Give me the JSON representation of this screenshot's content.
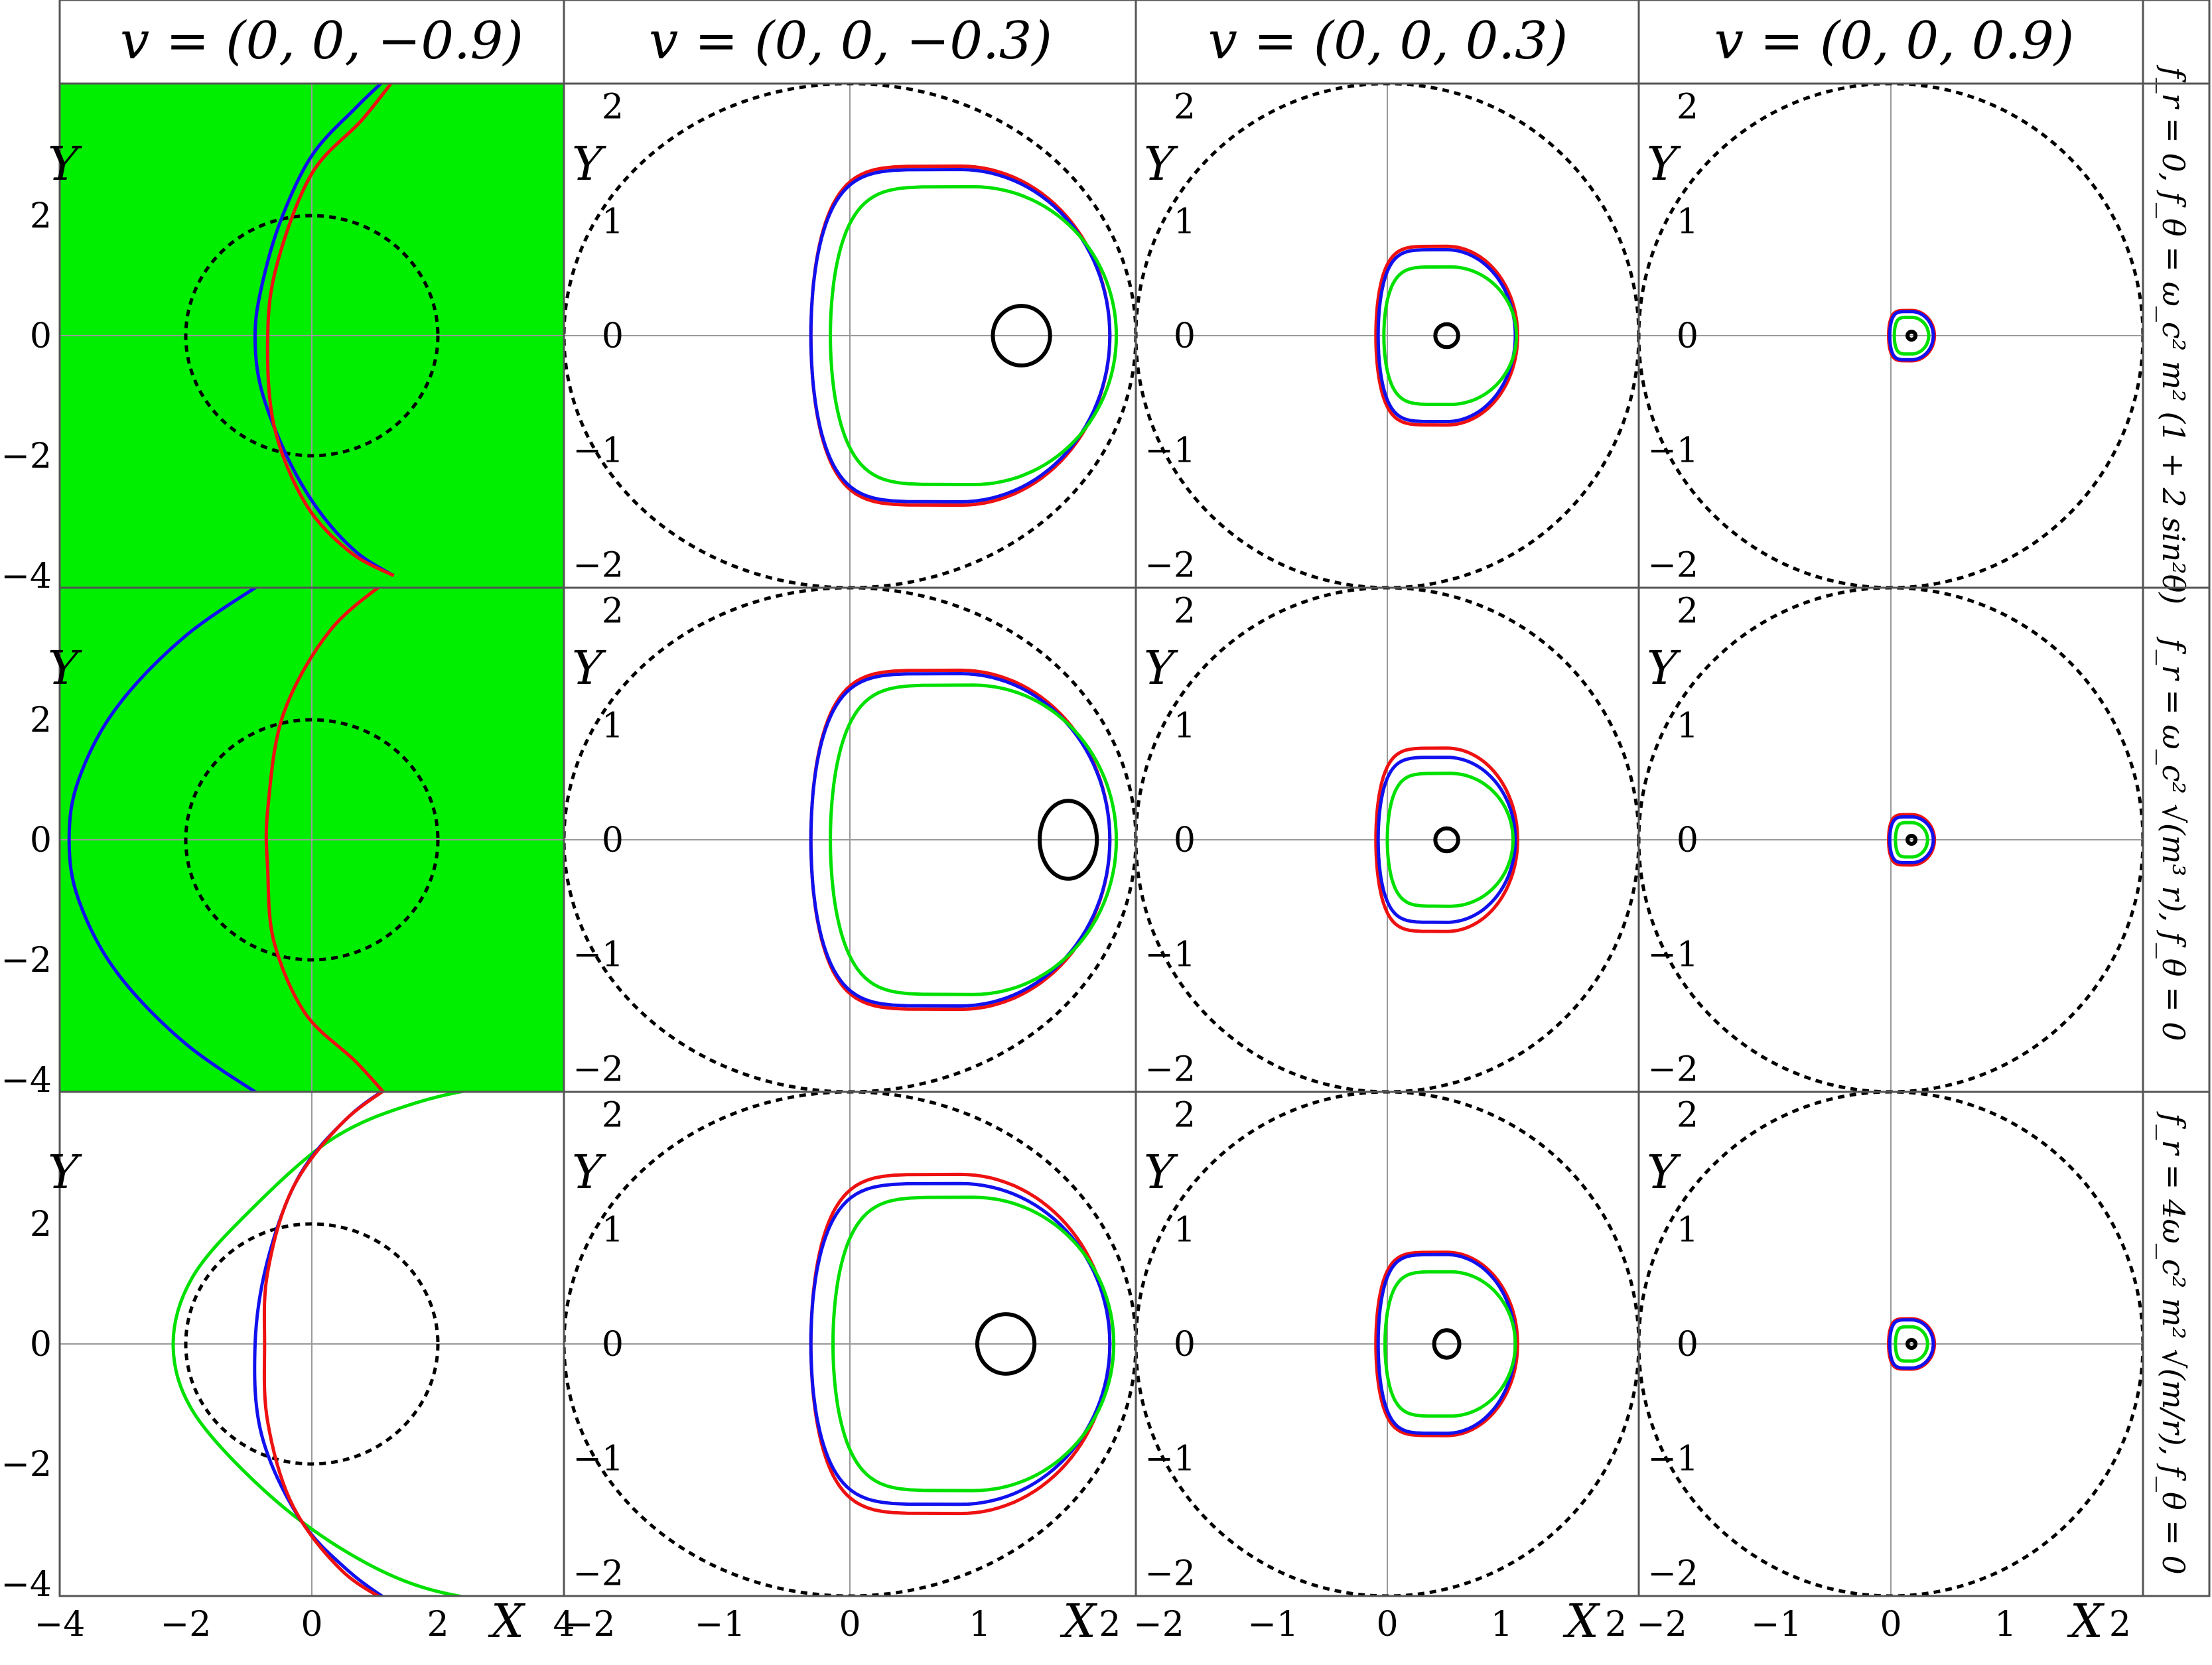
{
  "figure": {
    "columns": [
      {
        "label": "v = (0, 0, −0.9)"
      },
      {
        "label": "v = (0, 0, −0.3)"
      },
      {
        "label": "v = (0, 0, 0.3)"
      },
      {
        "label": "v = (0, 0, 0.9)"
      }
    ],
    "rows": [
      {
        "label": "f_r = 0,  f_θ = ω_c² m² (1 + 2 sin²θ)"
      },
      {
        "label": "f_r = ω_c² √(m³ r),  f_θ = 0"
      },
      {
        "label": "f_r = 4ω_c² m² √(m/r),  f_θ = 0"
      }
    ],
    "axis_labels": {
      "x": "X",
      "y": "Y"
    },
    "colors": {
      "red": "#ee1111",
      "blue": "#1111ee",
      "green": "#00e000",
      "black": "#000000",
      "fill_green": "#00ee00",
      "frame": "#555555",
      "axis": "#999999"
    }
  },
  "chart_data": [
    {
      "type": "line",
      "row": 0,
      "col": 0,
      "xlim": [
        -4,
        4
      ],
      "ylim": [
        -4.2,
        4.2
      ],
      "xticks": [
        -4,
        -2,
        0,
        2,
        4
      ],
      "yticks": [
        -4,
        -2,
        0,
        2,
        4
      ],
      "background_fill": "green",
      "dashed_circle": {
        "center": [
          0,
          0
        ],
        "radius": 2
      },
      "series": [
        {
          "color": "blue",
          "points": [
            [
              1.3,
              4.4
            ],
            [
              0.7,
              3.8
            ],
            [
              0.0,
              3.0
            ],
            [
              -0.5,
              1.9
            ],
            [
              -0.8,
              0.8
            ],
            [
              -0.9,
              0.0
            ],
            [
              -0.8,
              -0.9
            ],
            [
              -0.4,
              -2.0
            ],
            [
              0.1,
              -2.9
            ],
            [
              0.7,
              -3.6
            ],
            [
              1.3,
              -4.0
            ]
          ]
        },
        {
          "color": "red",
          "points": [
            [
              1.4,
              4.4
            ],
            [
              0.8,
              3.6
            ],
            [
              0.0,
              2.7
            ],
            [
              -0.55,
              1.2
            ],
            [
              -0.7,
              0.0
            ],
            [
              -0.6,
              -1.5
            ],
            [
              -0.1,
              -2.8
            ],
            [
              0.6,
              -3.6
            ],
            [
              1.3,
              -4.0
            ]
          ]
        }
      ]
    },
    {
      "type": "line",
      "row": 0,
      "col": 1,
      "xlim": [
        -2.2,
        2.2
      ],
      "ylim": [
        -2.2,
        2.2
      ],
      "xticks": [
        -2,
        -1,
        0,
        1,
        2
      ],
      "yticks": [
        -2,
        -1,
        0,
        1,
        2
      ],
      "dashed_circle": {
        "center": [
          0,
          0
        ],
        "radius": 2.2
      },
      "series": [
        {
          "color": "red",
          "cx": 0.85,
          "rx": 1.15,
          "ry": 1.48,
          "ymax": 1.48
        },
        {
          "color": "blue",
          "cx": 0.85,
          "rx": 1.15,
          "ry": 1.45,
          "ymax": 1.45
        },
        {
          "color": "green",
          "cx": 0.95,
          "rx": 1.1,
          "ry": 1.3,
          "ymax": 1.3
        },
        {
          "color": "black",
          "type": "ellipse",
          "cx": 1.32,
          "cy": 0,
          "rx": 0.22,
          "ry": 0.26
        }
      ]
    },
    {
      "type": "line",
      "row": 0,
      "col": 2,
      "xlim": [
        -2.2,
        2.2
      ],
      "ylim": [
        -2.2,
        2.2
      ],
      "xticks": [
        -2,
        -1,
        0,
        1,
        2
      ],
      "yticks": [
        -2,
        -1,
        0,
        1,
        2
      ],
      "dashed_circle": {
        "center": [
          0,
          0
        ],
        "radius": 2.2
      },
      "series": [
        {
          "color": "red",
          "cx": 0.52,
          "rx": 0.62,
          "ry": 0.78,
          "ymax": 0.78
        },
        {
          "color": "blue",
          "cx": 0.52,
          "rx": 0.6,
          "ry": 0.75,
          "ymax": 0.75
        },
        {
          "color": "green",
          "cx": 0.55,
          "rx": 0.58,
          "ry": 0.6,
          "ymax": 0.6
        },
        {
          "color": "black",
          "type": "ellipse",
          "cx": 0.52,
          "cy": 0,
          "rx": 0.1,
          "ry": 0.1
        }
      ]
    },
    {
      "type": "line",
      "row": 0,
      "col": 3,
      "xlim": [
        -2.2,
        2.2
      ],
      "ylim": [
        -2.2,
        2.2
      ],
      "xticks": [
        -2,
        -1,
        0,
        1,
        2
      ],
      "yticks": [
        -2,
        -1,
        0,
        1,
        2
      ],
      "dashed_circle": {
        "center": [
          0,
          0
        ],
        "radius": 2.2
      },
      "series": [
        {
          "color": "red",
          "cx": 0.18,
          "rx": 0.2,
          "ry": 0.22,
          "ymax": 0.22
        },
        {
          "color": "blue",
          "cx": 0.18,
          "rx": 0.19,
          "ry": 0.21,
          "ymax": 0.21
        },
        {
          "color": "green",
          "cx": 0.18,
          "rx": 0.15,
          "ry": 0.16,
          "ymax": 0.16
        },
        {
          "color": "black",
          "type": "ellipse",
          "cx": 0.18,
          "cy": 0,
          "rx": 0.035,
          "ry": 0.035
        }
      ]
    },
    {
      "type": "line",
      "row": 1,
      "col": 0,
      "xlim": [
        -4,
        4
      ],
      "ylim": [
        -4.2,
        4.2
      ],
      "xticks": [
        -4,
        -2,
        0,
        2,
        4
      ],
      "yticks": [
        -4,
        -2,
        0,
        2,
        4
      ],
      "background_fill": "green",
      "dashed_circle": {
        "center": [
          0,
          0
        ],
        "radius": 2
      },
      "series": [
        {
          "color": "blue",
          "points": [
            [
              -0.6,
              4.4
            ],
            [
              -2.0,
              3.4
            ],
            [
              -3.1,
              2.2
            ],
            [
              -3.7,
              1.0
            ],
            [
              -3.85,
              0.0
            ],
            [
              -3.7,
              -1.0
            ],
            [
              -3.1,
              -2.2
            ],
            [
              -2.0,
              -3.4
            ],
            [
              -0.6,
              -4.4
            ]
          ]
        },
        {
          "color": "red",
          "points": [
            [
              1.3,
              4.4
            ],
            [
              0.3,
              3.5
            ],
            [
              -0.45,
              2.1
            ],
            [
              -0.7,
              0.5
            ],
            [
              -0.7,
              -0.5
            ],
            [
              -0.6,
              -1.7
            ],
            [
              -0.1,
              -2.9
            ],
            [
              0.7,
              -3.7
            ],
            [
              1.3,
              -4.4
            ]
          ]
        }
      ]
    },
    {
      "type": "line",
      "row": 1,
      "col": 1,
      "xlim": [
        -2.2,
        2.2
      ],
      "ylim": [
        -2.2,
        2.2
      ],
      "xticks": [
        -2,
        -1,
        0,
        1,
        2
      ],
      "yticks": [
        -2,
        -1,
        0,
        1,
        2
      ],
      "dashed_circle": {
        "center": [
          0,
          0
        ],
        "radius": 2.2
      },
      "series": [
        {
          "color": "red",
          "cx": 0.85,
          "rx": 1.15,
          "ry": 1.48,
          "ymax": 1.48
        },
        {
          "color": "blue",
          "cx": 0.85,
          "rx": 1.15,
          "ry": 1.45,
          "ymax": 1.45
        },
        {
          "color": "green",
          "cx": 0.95,
          "rx": 1.1,
          "ry": 1.35,
          "ymax": 1.35
        },
        {
          "color": "black",
          "type": "ellipse",
          "cx": 1.68,
          "cy": 0,
          "rx": 0.22,
          "ry": 0.34
        }
      ]
    },
    {
      "type": "line",
      "row": 1,
      "col": 2,
      "xlim": [
        -2.2,
        2.2
      ],
      "ylim": [
        -2.2,
        2.2
      ],
      "xticks": [
        -2,
        -1,
        0,
        1,
        2
      ],
      "yticks": [
        -2,
        -1,
        0,
        1,
        2
      ],
      "dashed_circle": {
        "center": [
          0,
          0
        ],
        "radius": 2.2
      },
      "series": [
        {
          "color": "red",
          "cx": 0.52,
          "rx": 0.62,
          "ry": 0.8,
          "ymax": 0.8
        },
        {
          "color": "blue",
          "cx": 0.52,
          "rx": 0.6,
          "ry": 0.72,
          "ymax": 0.72
        },
        {
          "color": "green",
          "cx": 0.55,
          "rx": 0.55,
          "ry": 0.58,
          "ymax": 0.58
        },
        {
          "color": "black",
          "type": "ellipse",
          "cx": 0.52,
          "cy": 0,
          "rx": 0.1,
          "ry": 0.1
        }
      ]
    },
    {
      "type": "line",
      "row": 1,
      "col": 3,
      "xlim": [
        -2.2,
        2.2
      ],
      "ylim": [
        -2.2,
        2.2
      ],
      "xticks": [
        -2,
        -1,
        0,
        1,
        2
      ],
      "yticks": [
        -2,
        -1,
        0,
        1,
        2
      ],
      "dashed_circle": {
        "center": [
          0,
          0
        ],
        "radius": 2.2
      },
      "series": [
        {
          "color": "red",
          "cx": 0.18,
          "rx": 0.2,
          "ry": 0.22,
          "ymax": 0.22
        },
        {
          "color": "blue",
          "cx": 0.18,
          "rx": 0.19,
          "ry": 0.2,
          "ymax": 0.2
        },
        {
          "color": "green",
          "cx": 0.18,
          "rx": 0.14,
          "ry": 0.15,
          "ymax": 0.15
        },
        {
          "color": "black",
          "type": "ellipse",
          "cx": 0.18,
          "cy": 0,
          "rx": 0.035,
          "ry": 0.035
        }
      ]
    },
    {
      "type": "line",
      "row": 2,
      "col": 0,
      "xlim": [
        -4,
        4
      ],
      "ylim": [
        -4.2,
        4.2
      ],
      "xticks": [
        -4,
        -2,
        0,
        2,
        4
      ],
      "yticks": [
        -4,
        -2,
        0,
        2,
        4
      ],
      "dashed_circle": {
        "center": [
          0,
          0
        ],
        "radius": 2
      },
      "series": [
        {
          "color": "green",
          "points": [
            [
              4.4,
              4.3
            ],
            [
              3.0,
              4.3
            ],
            [
              1.6,
              4.0
            ],
            [
              0.3,
              3.4
            ],
            [
              -1.0,
              2.2
            ],
            [
              -1.9,
              1.1
            ],
            [
              -2.2,
              0.0
            ],
            [
              -1.9,
              -1.1
            ],
            [
              -0.9,
              -2.3
            ],
            [
              0.3,
              -3.3
            ],
            [
              1.6,
              -4.0
            ],
            [
              3.0,
              -4.3
            ],
            [
              4.4,
              -4.3
            ]
          ]
        },
        {
          "color": "blue",
          "points": [
            [
              1.4,
              4.4
            ],
            [
              0.6,
              3.8
            ],
            [
              -0.2,
              2.8
            ],
            [
              -0.7,
              1.4
            ],
            [
              -0.9,
              0.0
            ],
            [
              -0.8,
              -1.5
            ],
            [
              -0.2,
              -2.9
            ],
            [
              0.6,
              -3.8
            ],
            [
              1.4,
              -4.4
            ]
          ]
        },
        {
          "color": "red",
          "points": [
            [
              1.4,
              4.4
            ],
            [
              0.5,
              3.7
            ],
            [
              -0.3,
              2.6
            ],
            [
              -0.7,
              1.2
            ],
            [
              -0.75,
              0.0
            ],
            [
              -0.7,
              -1.3
            ],
            [
              -0.3,
              -2.7
            ],
            [
              0.5,
              -3.8
            ],
            [
              1.4,
              -4.4
            ]
          ]
        }
      ]
    },
    {
      "type": "line",
      "row": 2,
      "col": 1,
      "xlim": [
        -2.2,
        2.2
      ],
      "ylim": [
        -2.2,
        2.2
      ],
      "xticks": [
        -2,
        -1,
        0,
        1,
        2
      ],
      "yticks": [
        -2,
        -1,
        0,
        1,
        2
      ],
      "dashed_circle": {
        "center": [
          0,
          0
        ],
        "radius": 2.2
      },
      "series": [
        {
          "color": "red",
          "cx": 0.85,
          "rx": 1.15,
          "ry": 1.48,
          "ymax": 1.48
        },
        {
          "color": "blue",
          "cx": 0.85,
          "rx": 1.15,
          "ry": 1.4,
          "ymax": 1.4
        },
        {
          "color": "green",
          "cx": 0.95,
          "rx": 1.08,
          "ry": 1.28,
          "ymax": 1.28
        },
        {
          "color": "black",
          "type": "ellipse",
          "cx": 1.2,
          "cy": 0,
          "rx": 0.22,
          "ry": 0.26
        }
      ]
    },
    {
      "type": "line",
      "row": 2,
      "col": 2,
      "xlim": [
        -2.2,
        2.2
      ],
      "ylim": [
        -2.2,
        2.2
      ],
      "xticks": [
        -2,
        -1,
        0,
        1,
        2
      ],
      "yticks": [
        -2,
        -1,
        0,
        1,
        2
      ],
      "dashed_circle": {
        "center": [
          0,
          0
        ],
        "radius": 2.2
      },
      "series": [
        {
          "color": "red",
          "cx": 0.52,
          "rx": 0.62,
          "ry": 0.8,
          "ymax": 0.8
        },
        {
          "color": "blue",
          "cx": 0.52,
          "rx": 0.6,
          "ry": 0.78,
          "ymax": 0.78
        },
        {
          "color": "green",
          "cx": 0.55,
          "rx": 0.57,
          "ry": 0.63,
          "ymax": 0.63
        },
        {
          "color": "black",
          "type": "ellipse",
          "cx": 0.52,
          "cy": 0,
          "rx": 0.11,
          "ry": 0.12
        }
      ]
    },
    {
      "type": "line",
      "row": 2,
      "col": 3,
      "xlim": [
        -2.2,
        2.2
      ],
      "ylim": [
        -2.2,
        2.2
      ],
      "xticks": [
        -2,
        -1,
        0,
        1,
        2
      ],
      "yticks": [
        -2,
        -1,
        0,
        1,
        2
      ],
      "dashed_circle": {
        "center": [
          0,
          0
        ],
        "radius": 2.2
      },
      "series": [
        {
          "color": "red",
          "cx": 0.18,
          "rx": 0.2,
          "ry": 0.22,
          "ymax": 0.22
        },
        {
          "color": "blue",
          "cx": 0.18,
          "rx": 0.19,
          "ry": 0.21,
          "ymax": 0.21
        },
        {
          "color": "green",
          "cx": 0.18,
          "rx": 0.14,
          "ry": 0.15,
          "ymax": 0.15
        },
        {
          "color": "black",
          "type": "ellipse",
          "cx": 0.18,
          "cy": 0,
          "rx": 0.035,
          "ry": 0.035
        }
      ]
    }
  ]
}
